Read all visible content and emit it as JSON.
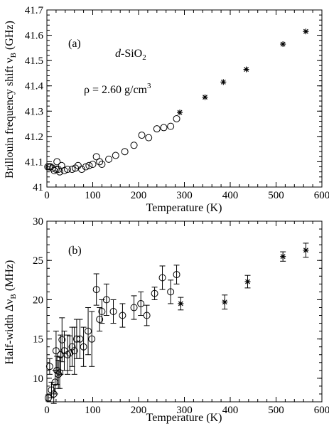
{
  "chart_data": [
    {
      "type": "scatter",
      "panel_label": "(a)",
      "material": "d-SiO",
      "material_sub": "2",
      "density_text": "ρ = 2.60 g/cm",
      "density_sup": "3",
      "xlabel": "Temperature (K)",
      "ylabel_main": "Brillouin frequency shift ν",
      "ylabel_sub": "B",
      "ylabel_unit": " (GHz)",
      "xlim": [
        0,
        600
      ],
      "ylim": [
        41.0,
        41.7
      ],
      "xticks": [
        "0",
        "100",
        "200",
        "300",
        "400",
        "500",
        "600"
      ],
      "yticks": [
        "41",
        "41.1",
        "41.2",
        "41.3",
        "41.4",
        "41.5",
        "41.6",
        "41.7"
      ],
      "grid": false,
      "series": [
        {
          "marker": "open-circle",
          "points": [
            [
              2,
              41.08
            ],
            [
              5,
              41.08
            ],
            [
              8,
              41.08
            ],
            [
              12,
              41.075
            ],
            [
              16,
              41.065
            ],
            [
              20,
              41.07
            ],
            [
              22,
              41.1
            ],
            [
              25,
              41.07
            ],
            [
              28,
              41.06
            ],
            [
              32,
              41.085
            ],
            [
              38,
              41.065
            ],
            [
              45,
              41.07
            ],
            [
              55,
              41.07
            ],
            [
              62,
              41.075
            ],
            [
              68,
              41.085
            ],
            [
              76,
              41.07
            ],
            [
              85,
              41.08
            ],
            [
              92,
              41.085
            ],
            [
              100,
              41.09
            ],
            [
              108,
              41.12
            ],
            [
              115,
              41.1
            ],
            [
              120,
              41.09
            ],
            [
              135,
              41.11
            ],
            [
              150,
              41.125
            ],
            [
              170,
              41.14
            ],
            [
              190,
              41.165
            ],
            [
              207,
              41.205
            ],
            [
              222,
              41.195
            ],
            [
              240,
              41.23
            ],
            [
              255,
              41.235
            ],
            [
              270,
              41.24
            ],
            [
              283,
              41.27
            ]
          ]
        },
        {
          "marker": "asterisk",
          "points": [
            [
              290,
              41.295
            ],
            [
              345,
              41.355
            ],
            [
              385,
              41.415
            ],
            [
              435,
              41.465
            ],
            [
              515,
              41.565
            ],
            [
              565,
              41.615
            ]
          ]
        }
      ]
    },
    {
      "type": "scatter",
      "panel_label": "(b)",
      "xlabel": "Temperature (K)",
      "ylabel_main": "Half-width Δν",
      "ylabel_sub": "B",
      "ylabel_unit": " (MHz)",
      "xlim": [
        0,
        600
      ],
      "ylim": [
        7,
        30
      ],
      "xticks": [
        "0",
        "100",
        "200",
        "300",
        "400",
        "500",
        "600"
      ],
      "yticks": [
        "10",
        "15",
        "20",
        "25",
        "30"
      ],
      "grid": false,
      "series": [
        {
          "marker": "open-circle",
          "error_bars": true,
          "points": [
            [
              3,
              7.5,
              0.4
            ],
            [
              6,
              11.5,
              1.0
            ],
            [
              10,
              8.5,
              1.0
            ],
            [
              15,
              8.0,
              1.2
            ],
            [
              18,
              9.5,
              1.5
            ],
            [
              20,
              13.5,
              2.5
            ],
            [
              22,
              11.0,
              1.8
            ],
            [
              25,
              10.5,
              1.8
            ],
            [
              28,
              10.7,
              2.0
            ],
            [
              30,
              13.0,
              2.5
            ],
            [
              33,
              14.9,
              2.8
            ],
            [
              38,
              13.5,
              2.5
            ],
            [
              45,
              13.0,
              2.5
            ],
            [
              50,
              13.2,
              2.2
            ],
            [
              55,
              14.0,
              2.5
            ],
            [
              60,
              13.5,
              3.0
            ],
            [
              65,
              15.0,
              2.5
            ],
            [
              72,
              15.0,
              2.5
            ],
            [
              80,
              14.0,
              2.5
            ],
            [
              90,
              16.0,
              3.0
            ],
            [
              98,
              15.0,
              3.5
            ],
            [
              108,
              21.3,
              2.0
            ],
            [
              115,
              17.5,
              1.5
            ],
            [
              120,
              18.5,
              1.5
            ],
            [
              130,
              20.0,
              2.0
            ],
            [
              145,
              18.5,
              1.5
            ],
            [
              165,
              18.0,
              1.5
            ],
            [
              190,
              19.0,
              1.5
            ],
            [
              205,
              19.5,
              1.5
            ],
            [
              218,
              18.0,
              1.3
            ],
            [
              235,
              20.8,
              0.8
            ],
            [
              252,
              22.8,
              1.5
            ],
            [
              270,
              21.0,
              1.5
            ],
            [
              283,
              23.2,
              1.2
            ]
          ]
        },
        {
          "marker": "asterisk",
          "error_bars": true,
          "points": [
            [
              292,
              19.5,
              0.8
            ],
            [
              388,
              19.7,
              0.9
            ],
            [
              438,
              22.3,
              0.8
            ],
            [
              515,
              25.5,
              0.6
            ],
            [
              565,
              26.3,
              0.9
            ]
          ]
        }
      ]
    }
  ]
}
